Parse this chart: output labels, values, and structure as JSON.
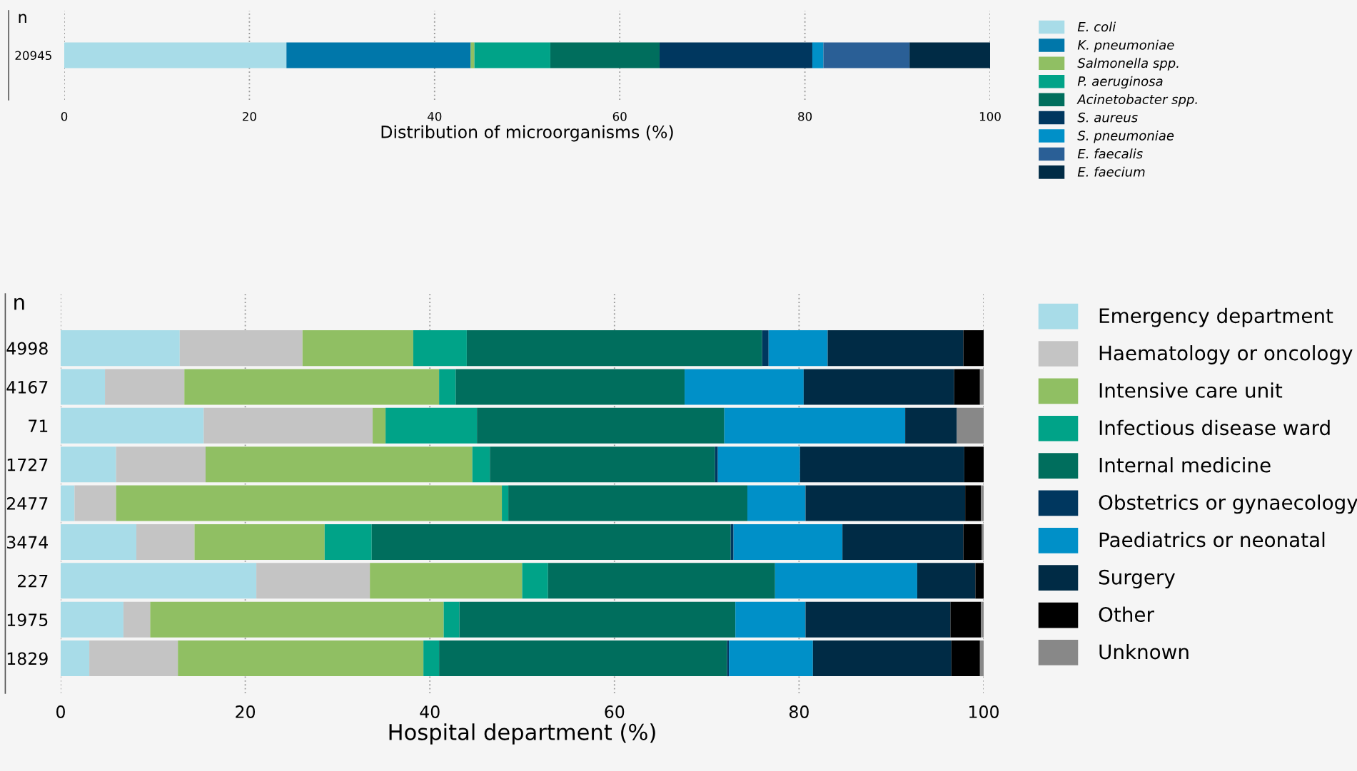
{
  "chart_data": [
    {
      "type": "bar",
      "orientation": "horizontal",
      "stacked": true,
      "xlabel": "Distribution of microorganisms (%)",
      "ylabel": "n",
      "categories": [
        "20945"
      ],
      "xlim": [
        0,
        100
      ],
      "xticks": [
        0,
        20,
        40,
        60,
        80,
        100
      ],
      "grid": "x",
      "legend": "right",
      "series": [
        {
          "name": "E. coli",
          "color": "#a8dce8",
          "values": [
            24.0
          ]
        },
        {
          "name": "K. pneumoniae",
          "color": "#0077aa",
          "values": [
            19.9
          ]
        },
        {
          "name": "Salmonella spp.",
          "color": "#90bf63",
          "values": [
            0.4
          ]
        },
        {
          "name": "P. aeruginosa",
          "color": "#00a388",
          "values": [
            8.2
          ]
        },
        {
          "name": "Acinetobacter spp.",
          "color": "#006e5d",
          "values": [
            11.8
          ]
        },
        {
          "name": "S. aureus",
          "color": "#00375f",
          "values": [
            16.5
          ]
        },
        {
          "name": "S. pneumoniae",
          "color": "#0090c8",
          "values": [
            1.2
          ]
        },
        {
          "name": "E. faecalis",
          "color": "#2a5f96",
          "values": [
            9.3
          ]
        },
        {
          "name": "E. faecium",
          "color": "#002b45",
          "values": [
            8.7
          ]
        }
      ]
    },
    {
      "type": "bar",
      "orientation": "horizontal",
      "stacked": true,
      "xlabel": "Hospital department (%)",
      "ylabel": "n",
      "categories": [
        "4998",
        "4167",
        "71",
        "1727",
        "2477",
        "3474",
        "227",
        "1975",
        "1829"
      ],
      "xlim": [
        0,
        100
      ],
      "xticks": [
        0,
        20,
        40,
        60,
        80,
        100
      ],
      "grid": "x",
      "legend": "right",
      "series": [
        {
          "name": "Emergency department",
          "color": "#a8dce8",
          "values": [
            12.9,
            4.8,
            15.5,
            6.0,
            1.5,
            8.2,
            21.2,
            6.8,
            3.1
          ]
        },
        {
          "name": "Haematology or oncology",
          "color": "#c4c4c4",
          "values": [
            13.3,
            8.6,
            18.3,
            9.7,
            4.5,
            6.3,
            12.3,
            2.9,
            9.6
          ]
        },
        {
          "name": "Intensive care unit",
          "color": "#90bf63",
          "values": [
            12.0,
            27.6,
            1.4,
            28.9,
            41.8,
            14.1,
            16.5,
            31.8,
            26.6
          ]
        },
        {
          "name": "Infectious disease ward",
          "color": "#00a388",
          "values": [
            5.8,
            1.8,
            9.9,
            1.9,
            0.7,
            5.1,
            2.8,
            1.7,
            1.7
          ]
        },
        {
          "name": "Internal medicine",
          "color": "#006e5d",
          "values": [
            32.0,
            24.8,
            26.8,
            24.4,
            25.9,
            38.9,
            24.6,
            29.9,
            31.2
          ]
        },
        {
          "name": "Obstetrics or gynaecology",
          "color": "#00375f",
          "values": [
            0.7,
            0,
            0,
            0.3,
            0,
            0.3,
            0,
            0,
            0.2
          ]
        },
        {
          "name": "Paediatrics or neonatal",
          "color": "#0090c8",
          "values": [
            6.4,
            12.9,
            19.6,
            8.9,
            6.3,
            11.8,
            15.4,
            7.6,
            9.1
          ]
        },
        {
          "name": "Surgery",
          "color": "#002b45",
          "values": [
            14.7,
            16.3,
            5.6,
            17.8,
            17.3,
            13.1,
            6.3,
            15.7,
            15.0
          ]
        },
        {
          "name": "Other",
          "color": "#000000",
          "values": [
            2.2,
            2.8,
            0,
            2.1,
            1.7,
            2.0,
            0.9,
            3.3,
            3.1
          ]
        },
        {
          "name": "Unknown",
          "color": "#888888",
          "values": [
            0,
            0.4,
            2.9,
            0,
            0.3,
            0.2,
            0,
            0.3,
            0.4
          ]
        }
      ]
    }
  ]
}
